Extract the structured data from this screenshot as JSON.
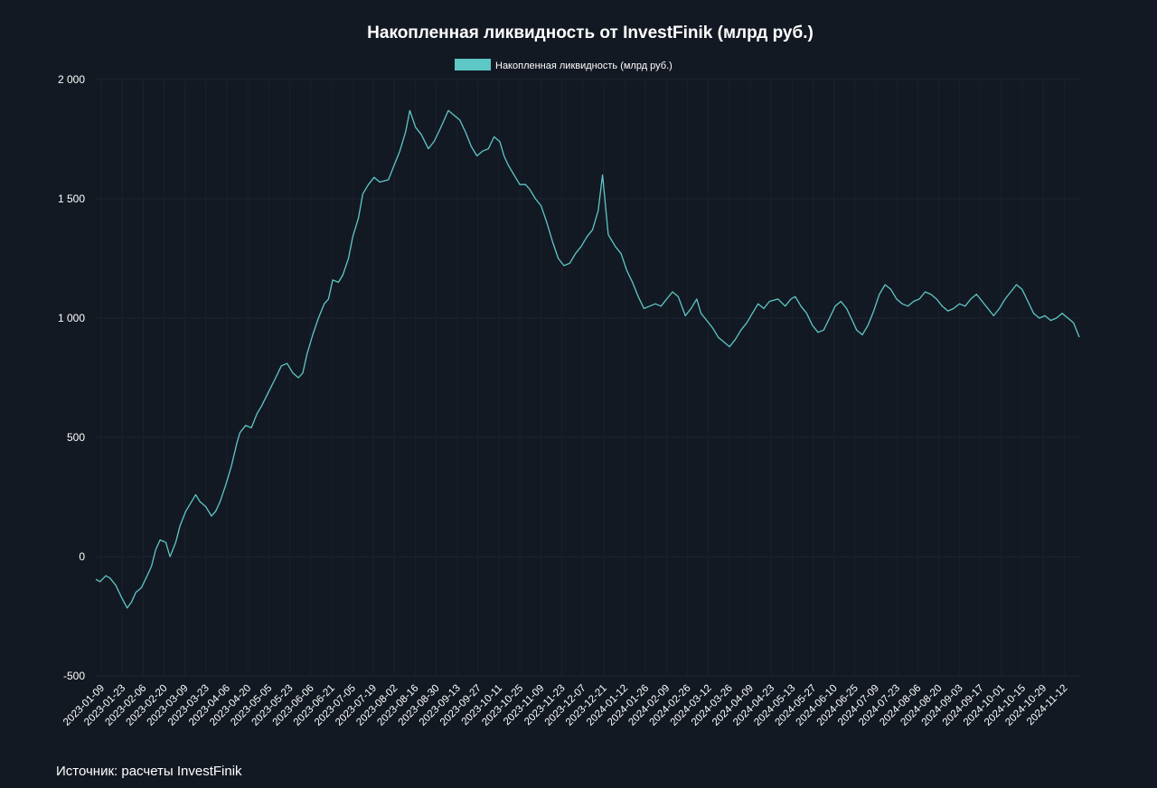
{
  "source_note": "Источник: расчеты InvestFinik",
  "chart_data": {
    "type": "line",
    "title": "Накопленная ликвидность от InvestFinik  (млрд руб.)",
    "xlabel": "",
    "ylabel": "",
    "ylim": [
      -500,
      2000
    ],
    "yticks": [
      -500,
      0,
      500,
      1000,
      1500,
      2000
    ],
    "ytick_labels": [
      "-500",
      "0",
      "500",
      "1 000",
      "1 500",
      "2 000"
    ],
    "x_range": [
      "2023-01-09",
      "2024-11-28"
    ],
    "xtick_labels": [
      "2023-01-09",
      "2023-01-23",
      "2023-02-06",
      "2023-02-20",
      "2023-03-09",
      "2023-03-23",
      "2023-04-06",
      "2023-04-20",
      "2023-05-05",
      "2023-05-23",
      "2023-06-06",
      "2023-06-21",
      "2023-07-05",
      "2023-07-19",
      "2023-08-02",
      "2023-08-16",
      "2023-08-30",
      "2023-09-13",
      "2023-09-27",
      "2023-10-11",
      "2023-10-25",
      "2023-11-09",
      "2023-11-23",
      "2023-12-07",
      "2023-12-21",
      "2024-01-12",
      "2024-01-26",
      "2024-02-09",
      "2024-02-26",
      "2024-03-12",
      "2024-03-26",
      "2024-04-09",
      "2024-04-23",
      "2024-05-13",
      "2024-05-27",
      "2024-06-10",
      "2024-06-25",
      "2024-07-09",
      "2024-07-23",
      "2024-08-06",
      "2024-08-20",
      "2024-09-03",
      "2024-09-17",
      "2024-10-01",
      "2024-10-15",
      "2024-10-29",
      "2024-11-12"
    ],
    "grid": true,
    "legend_position": "top-center",
    "line_color": "#5ec8c6",
    "series": [
      {
        "name": "Накопленная ликвидность (млрд руб.)",
        "points": [
          [
            "2023-01-09",
            -95
          ],
          [
            "2023-01-12",
            -105
          ],
          [
            "2023-01-16",
            -80
          ],
          [
            "2023-01-19",
            -90
          ],
          [
            "2023-01-23",
            -120
          ],
          [
            "2023-01-27",
            -170
          ],
          [
            "2023-01-31",
            -215
          ],
          [
            "2023-02-03",
            -190
          ],
          [
            "2023-02-06",
            -150
          ],
          [
            "2023-02-10",
            -130
          ],
          [
            "2023-02-14",
            -80
          ],
          [
            "2023-02-17",
            -40
          ],
          [
            "2023-02-20",
            30
          ],
          [
            "2023-02-23",
            70
          ],
          [
            "2023-02-27",
            60
          ],
          [
            "2023-03-02",
            0
          ],
          [
            "2023-03-06",
            60
          ],
          [
            "2023-03-09",
            130
          ],
          [
            "2023-03-13",
            190
          ],
          [
            "2023-03-16",
            220
          ],
          [
            "2023-03-20",
            260
          ],
          [
            "2023-03-23",
            230
          ],
          [
            "2023-03-27",
            210
          ],
          [
            "2023-03-31",
            170
          ],
          [
            "2023-04-03",
            190
          ],
          [
            "2023-04-06",
            230
          ],
          [
            "2023-04-10",
            300
          ],
          [
            "2023-04-14",
            380
          ],
          [
            "2023-04-18",
            480
          ],
          [
            "2023-04-20",
            520
          ],
          [
            "2023-04-24",
            550
          ],
          [
            "2023-04-28",
            540
          ],
          [
            "2023-05-02",
            600
          ],
          [
            "2023-05-05",
            630
          ],
          [
            "2023-05-10",
            690
          ],
          [
            "2023-05-15",
            750
          ],
          [
            "2023-05-19",
            800
          ],
          [
            "2023-05-23",
            810
          ],
          [
            "2023-05-27",
            770
          ],
          [
            "2023-05-31",
            750
          ],
          [
            "2023-06-03",
            770
          ],
          [
            "2023-06-06",
            850
          ],
          [
            "2023-06-10",
            930
          ],
          [
            "2023-06-14",
            1000
          ],
          [
            "2023-06-18",
            1060
          ],
          [
            "2023-06-21",
            1080
          ],
          [
            "2023-06-24",
            1160
          ],
          [
            "2023-06-28",
            1150
          ],
          [
            "2023-07-01",
            1180
          ],
          [
            "2023-07-05",
            1250
          ],
          [
            "2023-07-08",
            1340
          ],
          [
            "2023-07-12",
            1420
          ],
          [
            "2023-07-15",
            1520
          ],
          [
            "2023-07-19",
            1560
          ],
          [
            "2023-07-23",
            1590
          ],
          [
            "2023-07-27",
            1570
          ],
          [
            "2023-08-02",
            1580
          ],
          [
            "2023-08-06",
            1640
          ],
          [
            "2023-08-10",
            1700
          ],
          [
            "2023-08-14",
            1780
          ],
          [
            "2023-08-17",
            1870
          ],
          [
            "2023-08-21",
            1800
          ],
          [
            "2023-08-25",
            1770
          ],
          [
            "2023-08-30",
            1710
          ],
          [
            "2023-09-03",
            1740
          ],
          [
            "2023-09-07",
            1790
          ],
          [
            "2023-09-10",
            1830
          ],
          [
            "2023-09-13",
            1870
          ],
          [
            "2023-09-17",
            1850
          ],
          [
            "2023-09-21",
            1830
          ],
          [
            "2023-09-25",
            1780
          ],
          [
            "2023-09-29",
            1720
          ],
          [
            "2023-10-03",
            1680
          ],
          [
            "2023-10-07",
            1700
          ],
          [
            "2023-10-11",
            1710
          ],
          [
            "2023-10-15",
            1760
          ],
          [
            "2023-10-19",
            1740
          ],
          [
            "2023-10-22",
            1680
          ],
          [
            "2023-10-25",
            1640
          ],
          [
            "2023-10-29",
            1600
          ],
          [
            "2023-11-02",
            1560
          ],
          [
            "2023-11-06",
            1560
          ],
          [
            "2023-11-09",
            1540
          ],
          [
            "2023-11-13",
            1500
          ],
          [
            "2023-11-17",
            1470
          ],
          [
            "2023-11-21",
            1400
          ],
          [
            "2023-11-25",
            1320
          ],
          [
            "2023-11-29",
            1250
          ],
          [
            "2023-12-03",
            1220
          ],
          [
            "2023-12-07",
            1230
          ],
          [
            "2023-12-11",
            1270
          ],
          [
            "2023-12-15",
            1300
          ],
          [
            "2023-12-19",
            1340
          ],
          [
            "2023-12-23",
            1370
          ],
          [
            "2023-12-27",
            1450
          ],
          [
            "2023-12-30",
            1600
          ],
          [
            "2024-01-03",
            1350
          ],
          [
            "2024-01-08",
            1300
          ],
          [
            "2024-01-12",
            1270
          ],
          [
            "2024-01-16",
            1200
          ],
          [
            "2024-01-20",
            1150
          ],
          [
            "2024-01-24",
            1090
          ],
          [
            "2024-01-28",
            1040
          ],
          [
            "2024-02-01",
            1050
          ],
          [
            "2024-02-05",
            1060
          ],
          [
            "2024-02-09",
            1050
          ],
          [
            "2024-02-13",
            1080
          ],
          [
            "2024-02-17",
            1110
          ],
          [
            "2024-02-21",
            1090
          ],
          [
            "2024-02-26",
            1010
          ],
          [
            "2024-03-01",
            1040
          ],
          [
            "2024-03-05",
            1080
          ],
          [
            "2024-03-08",
            1020
          ],
          [
            "2024-03-12",
            990
          ],
          [
            "2024-03-16",
            960
          ],
          [
            "2024-03-20",
            920
          ],
          [
            "2024-03-24",
            900
          ],
          [
            "2024-03-28",
            880
          ],
          [
            "2024-04-01",
            910
          ],
          [
            "2024-04-05",
            950
          ],
          [
            "2024-04-09",
            980
          ],
          [
            "2024-04-13",
            1020
          ],
          [
            "2024-04-17",
            1060
          ],
          [
            "2024-04-21",
            1040
          ],
          [
            "2024-04-25",
            1070
          ],
          [
            "2024-05-01",
            1080
          ],
          [
            "2024-05-06",
            1050
          ],
          [
            "2024-05-10",
            1080
          ],
          [
            "2024-05-13",
            1090
          ],
          [
            "2024-05-17",
            1050
          ],
          [
            "2024-05-21",
            1020
          ],
          [
            "2024-05-25",
            970
          ],
          [
            "2024-05-29",
            940
          ],
          [
            "2024-06-02",
            950
          ],
          [
            "2024-06-06",
            1000
          ],
          [
            "2024-06-10",
            1050
          ],
          [
            "2024-06-14",
            1070
          ],
          [
            "2024-06-18",
            1040
          ],
          [
            "2024-06-22",
            990
          ],
          [
            "2024-06-25",
            950
          ],
          [
            "2024-06-29",
            930
          ],
          [
            "2024-07-03",
            970
          ],
          [
            "2024-07-07",
            1030
          ],
          [
            "2024-07-11",
            1100
          ],
          [
            "2024-07-15",
            1140
          ],
          [
            "2024-07-19",
            1120
          ],
          [
            "2024-07-23",
            1080
          ],
          [
            "2024-07-27",
            1060
          ],
          [
            "2024-07-31",
            1050
          ],
          [
            "2024-08-04",
            1070
          ],
          [
            "2024-08-08",
            1080
          ],
          [
            "2024-08-12",
            1110
          ],
          [
            "2024-08-16",
            1100
          ],
          [
            "2024-08-20",
            1080
          ],
          [
            "2024-08-24",
            1050
          ],
          [
            "2024-08-28",
            1030
          ],
          [
            "2024-09-01",
            1040
          ],
          [
            "2024-09-05",
            1060
          ],
          [
            "2024-09-09",
            1050
          ],
          [
            "2024-09-13",
            1080
          ],
          [
            "2024-09-17",
            1100
          ],
          [
            "2024-09-21",
            1070
          ],
          [
            "2024-09-25",
            1040
          ],
          [
            "2024-09-29",
            1010
          ],
          [
            "2024-10-03",
            1040
          ],
          [
            "2024-10-07",
            1080
          ],
          [
            "2024-10-11",
            1110
          ],
          [
            "2024-10-15",
            1140
          ],
          [
            "2024-10-19",
            1120
          ],
          [
            "2024-10-23",
            1070
          ],
          [
            "2024-10-27",
            1020
          ],
          [
            "2024-10-31",
            1000
          ],
          [
            "2024-11-04",
            1010
          ],
          [
            "2024-11-08",
            990
          ],
          [
            "2024-11-12",
            1000
          ],
          [
            "2024-11-16",
            1020
          ],
          [
            "2024-11-20",
            1000
          ],
          [
            "2024-11-24",
            980
          ],
          [
            "2024-11-28",
            920
          ]
        ]
      }
    ]
  }
}
